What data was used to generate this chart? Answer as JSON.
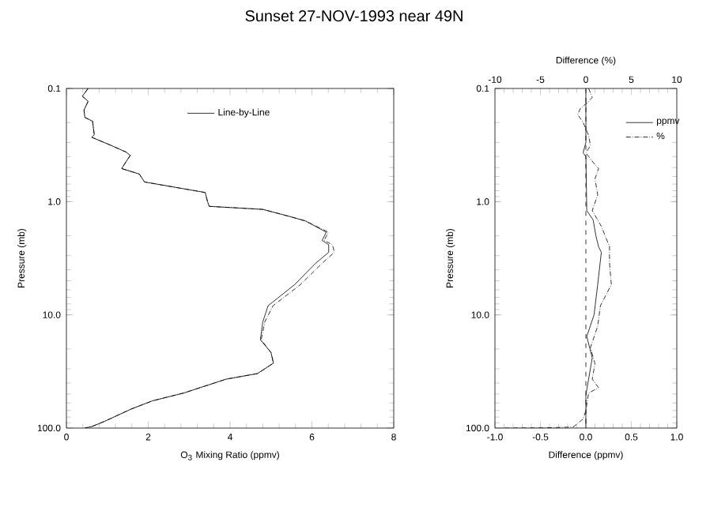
{
  "chart_data": [
    {
      "type": "line",
      "title": "Sunset 27-NOV-1993 near 49N",
      "xlabel": "O$_{3}$ Mixing Ratio (ppmv)",
      "ylabel": "Pressure (mb)",
      "xlim": [
        0,
        8
      ],
      "xticks": [
        0,
        2,
        4,
        6,
        8
      ],
      "log": "y",
      "ylim": [
        100,
        0.1
      ],
      "yticks": [
        0.1,
        {
          "value": 1,
          "label": "1.0"
        },
        {
          "value": 10,
          "label": "10.0"
        },
        {
          "value": 100,
          "label": "100.0"
        }
      ],
      "legend": "top",
      "series": [
        {
          "name": "Line-by-Line",
          "color": "#000000",
          "line_style": "solid",
          "x": [
            0.53,
            0.39,
            0.53,
            0.43,
            0.45,
            0.64,
            0.68,
            0.62,
            1.07,
            1.46,
            1.56,
            1.43,
            1.35,
            1.78,
            1.91,
            2.87,
            3.39,
            3.45,
            3.49,
            4.8,
            5.45,
            5.84,
            6.35,
            6.25,
            6.41,
            6.41,
            6.09,
            5.58,
            4.93,
            4.8,
            4.74,
            5.0,
            5.06,
            4.67,
            3.9,
            2.87,
            2.1,
            1.58,
            0.94,
            0.62,
            0.45
          ],
          "values": [
            0.1,
            0.117,
            0.13,
            0.155,
            0.18,
            0.195,
            0.256,
            0.27,
            0.316,
            0.365,
            0.39,
            0.46,
            0.51,
            0.57,
            0.67,
            0.77,
            0.83,
            1.0,
            1.1,
            1.17,
            1.35,
            1.48,
            1.86,
            2.2,
            2.4,
            2.8,
            3.5,
            5.4,
            8.3,
            11.5,
            16.6,
            21.5,
            26.7,
            33,
            37,
            49,
            57.5,
            68,
            87,
            97,
            100
          ]
        },
        {
          "color": "#000000",
          "line_style": "dotted",
          "x": [
            0.53,
            0.39,
            0.53,
            0.43,
            0.45,
            0.64,
            0.68,
            0.62,
            1.07,
            1.46,
            1.56,
            1.43,
            1.35,
            1.78,
            1.91,
            2.87,
            3.39,
            3.45,
            3.49,
            4.8,
            5.45,
            5.84,
            6.4,
            6.3,
            6.5,
            6.55,
            6.25,
            5.72,
            5.05,
            4.85,
            4.76,
            5.0,
            5.06,
            4.67,
            3.9,
            2.87,
            2.1,
            1.58,
            0.94,
            0.62,
            0.45
          ],
          "values": [
            0.1,
            0.117,
            0.13,
            0.155,
            0.18,
            0.195,
            0.256,
            0.27,
            0.316,
            0.365,
            0.39,
            0.46,
            0.51,
            0.57,
            0.67,
            0.77,
            0.83,
            1.0,
            1.1,
            1.17,
            1.35,
            1.48,
            1.86,
            2.2,
            2.4,
            2.8,
            3.5,
            5.4,
            8.3,
            11.5,
            16.6,
            21.5,
            26.7,
            33,
            37,
            49,
            57.5,
            68,
            87,
            97,
            100
          ]
        }
      ]
    },
    {
      "type": "line",
      "xlabel": "Difference (ppmv)",
      "x2label": "Difference (%)",
      "ylabel": "Pressure (mb)",
      "xlim": [
        -1,
        1
      ],
      "xticks": [
        {
          "value": -1,
          "label": "-1.0"
        },
        {
          "value": -0.5,
          "label": "-0.5"
        },
        {
          "value": 0,
          "label": "0.0"
        },
        {
          "value": 0.5,
          "label": "0.5"
        },
        {
          "value": 1,
          "label": "1.0"
        }
      ],
      "x2lim": [
        -10,
        10
      ],
      "x2ticks": [
        -10,
        -5,
        0,
        5,
        10
      ],
      "log": "y",
      "ylim": [
        100,
        0.1
      ],
      "yticks": [
        0.1,
        {
          "value": 1,
          "label": "1.0"
        },
        {
          "value": 10,
          "label": "10.0"
        },
        {
          "value": 100,
          "label": "100.0"
        }
      ],
      "legend": "top right",
      "ref_lines": [
        {
          "axis": "x",
          "value": 0,
          "line_style": "dashed",
          "color": "#000000"
        }
      ],
      "series": [
        {
          "name": "ppmv",
          "color": "#000000",
          "line_style": "solid",
          "x": [
            0,
            0,
            -0.03,
            0,
            0.01,
            0.08,
            0.11,
            0.14,
            0.17,
            0.13,
            0.09,
            0.01,
            0.07,
            0.03,
            0,
            0
          ],
          "values": [
            0.1,
            0.3,
            0.37,
            0.4,
            1.2,
            1.45,
            2.0,
            2.5,
            2.8,
            5.4,
            10,
            15.5,
            24,
            37,
            51,
            100
          ]
        },
        {
          "name": "%",
          "axis": "x2",
          "color": "#000000",
          "line_style": "dotted",
          "x": [
            0.3,
            0.7,
            0.1,
            -0.6,
            -0.9,
            -0.3,
            0.3,
            0.5,
            0,
            0.9,
            1.4,
            1.0,
            1.3,
            0.7,
            1.7,
            2.6,
            2.6,
            2.8,
            1.6,
            1.3,
            0.5,
            1.0,
            0.7,
            1.4,
            0.3,
            0,
            -0.3,
            -1.4,
            -4.6,
            -9.2
          ],
          "values": [
            0.1,
            0.12,
            0.135,
            0.15,
            0.17,
            0.2,
            0.26,
            0.32,
            0.37,
            0.46,
            0.51,
            0.63,
            0.87,
            1.2,
            1.65,
            2.5,
            3.5,
            5.4,
            8.3,
            12.6,
            19.5,
            27,
            37,
            44,
            49,
            70,
            83,
            98,
            99.5,
            100
          ]
        }
      ]
    }
  ]
}
